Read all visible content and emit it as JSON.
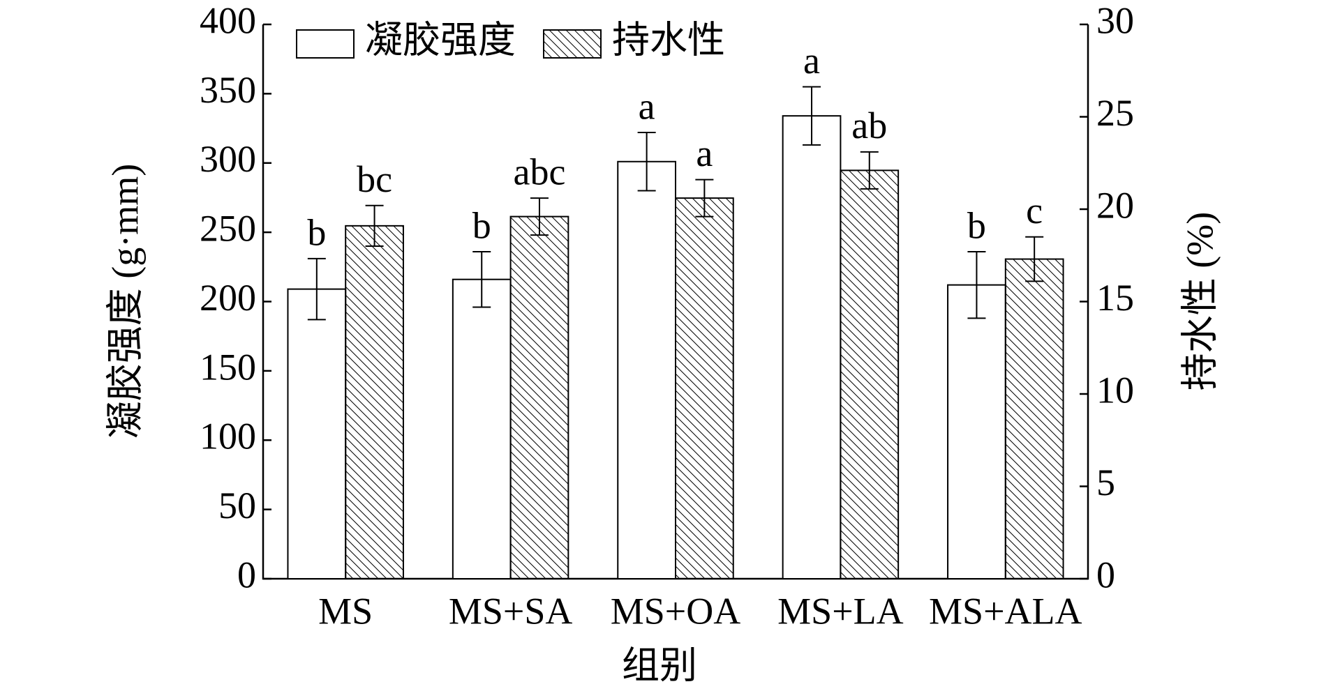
{
  "chart_data": {
    "type": "bar",
    "categories": [
      "MS",
      "MS+SA",
      "MS+OA",
      "MS+LA",
      "MS+ALA"
    ],
    "xlabel": "组别",
    "ylabel": "凝胶强度 (g·mm)",
    "y2label": "持水性 (%)",
    "ylim": [
      0,
      400
    ],
    "yticks": [
      0,
      50,
      100,
      150,
      200,
      250,
      300,
      350,
      400
    ],
    "y2lim": [
      0,
      30
    ],
    "y2ticks": [
      0,
      5,
      10,
      15,
      20,
      25,
      30
    ],
    "legend": "top-left",
    "series": [
      {
        "name": "凝胶强度",
        "color": "#ffffff",
        "hatch": false,
        "axis": "y",
        "values": [
          209,
          216,
          301,
          334,
          212
        ],
        "errors": [
          22,
          20,
          21,
          21,
          24
        ],
        "letters": [
          "b",
          "b",
          "a",
          "a",
          "b"
        ]
      },
      {
        "name": "持水性",
        "color": "#ffffff",
        "hatch": true,
        "axis": "y2",
        "values": [
          19.1,
          19.6,
          20.6,
          22.1,
          17.3
        ],
        "errors": [
          1.1,
          1.0,
          1.0,
          1.0,
          1.2
        ],
        "letters": [
          "bc",
          "abc",
          "a",
          "ab",
          "c"
        ]
      }
    ]
  }
}
